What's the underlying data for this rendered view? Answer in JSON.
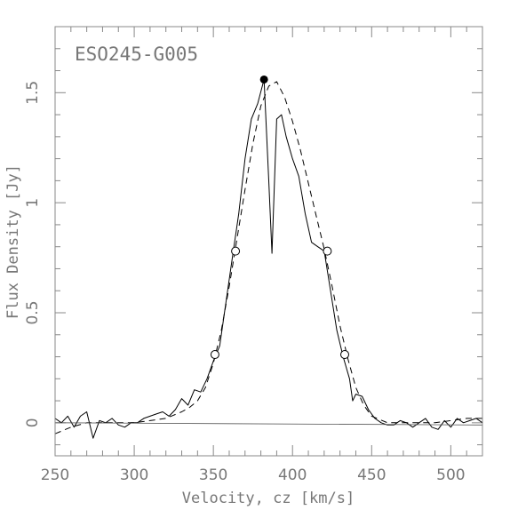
{
  "chart_data": {
    "type": "line",
    "title": "ESO245-G005",
    "xlabel": "Velocity, cz [km/s]",
    "ylabel": "Flux Density [Jy]",
    "xlim": [
      250,
      520
    ],
    "ylim": [
      -0.15,
      1.8
    ],
    "x_ticks": [
      250,
      300,
      350,
      400,
      450,
      500
    ],
    "x_tick_labels": [
      "250",
      "300",
      "350",
      "400",
      "450",
      "500"
    ],
    "y_ticks": [
      0,
      0.5,
      1,
      1.5
    ],
    "y_tick_labels": [
      "0",
      "0.5",
      "1",
      "1.5"
    ],
    "grid": false,
    "series": [
      {
        "style": "solid",
        "x": [
          250,
          254,
          258,
          262,
          266,
          270,
          274,
          278,
          282,
          286,
          290,
          294,
          298,
          302,
          306,
          310,
          314,
          318,
          322,
          326,
          330,
          334,
          338,
          342,
          346,
          350,
          354,
          358,
          362,
          366,
          370,
          374,
          378,
          382,
          385,
          387,
          390,
          393,
          396,
          400,
          404,
          408,
          412,
          416,
          420,
          424,
          428,
          432,
          436,
          438,
          440,
          444,
          448,
          452,
          456,
          460,
          464,
          468,
          472,
          476,
          480,
          484,
          488,
          492,
          496,
          500,
          504,
          508,
          512,
          516,
          520
        ],
        "y": [
          0.02,
          0.0,
          0.03,
          -0.02,
          0.03,
          0.05,
          -0.07,
          0.01,
          0.0,
          0.02,
          -0.01,
          -0.02,
          0.0,
          0.0,
          0.02,
          0.03,
          0.04,
          0.05,
          0.03,
          0.06,
          0.11,
          0.08,
          0.15,
          0.14,
          0.2,
          0.28,
          0.35,
          0.55,
          0.75,
          0.95,
          1.2,
          1.38,
          1.45,
          1.56,
          1.1,
          0.77,
          1.38,
          1.4,
          1.3,
          1.2,
          1.12,
          0.95,
          0.82,
          0.8,
          0.78,
          0.6,
          0.42,
          0.3,
          0.2,
          0.1,
          0.13,
          0.12,
          0.06,
          0.02,
          0.0,
          -0.01,
          -0.01,
          0.01,
          0.0,
          -0.02,
          0.0,
          0.02,
          -0.02,
          -0.03,
          0.01,
          -0.02,
          0.02,
          0.0,
          0.01,
          0.02,
          0.0
        ]
      },
      {
        "style": "dashed",
        "x": [
          250,
          260,
          270,
          280,
          290,
          300,
          310,
          320,
          330,
          335,
          340,
          345,
          350,
          355,
          360,
          365,
          370,
          375,
          380,
          385,
          390,
          395,
          400,
          405,
          410,
          415,
          420,
          425,
          430,
          435,
          440,
          445,
          450,
          460,
          470,
          480,
          490,
          500,
          510,
          520
        ],
        "y": [
          -0.05,
          -0.02,
          0.0,
          0.0,
          0.0,
          0.0,
          0.01,
          0.02,
          0.05,
          0.07,
          0.1,
          0.16,
          0.27,
          0.42,
          0.62,
          0.84,
          1.06,
          1.27,
          1.44,
          1.53,
          1.55,
          1.48,
          1.37,
          1.24,
          1.09,
          0.94,
          0.79,
          0.62,
          0.44,
          0.29,
          0.16,
          0.08,
          0.03,
          0.0,
          0.0,
          0.0,
          0.0,
          0.01,
          0.02,
          0.02
        ]
      },
      {
        "style": "solid-thin",
        "x": [
          250,
          520
        ],
        "y": [
          0.0,
          -0.01
        ]
      }
    ],
    "markers": {
      "peak": {
        "x": 382,
        "y": 1.56
      },
      "open_circles": [
        {
          "x": 351,
          "y": 0.31
        },
        {
          "x": 364,
          "y": 0.78
        },
        {
          "x": 422,
          "y": 0.78
        },
        {
          "x": 433,
          "y": 0.31
        }
      ]
    }
  }
}
